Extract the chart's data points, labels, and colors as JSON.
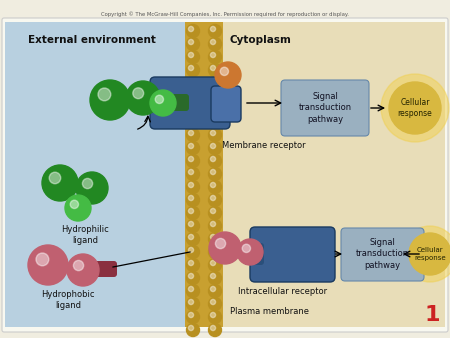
{
  "fig_width": 4.5,
  "fig_height": 3.38,
  "dpi": 100,
  "bg_outer": "#f0ede0",
  "bg_left": "#b8d0e0",
  "bg_right": "#e8ddb8",
  "membrane_color": "#c8a030",
  "copyright_text": "Copyright © The McGraw-Hill Companies, Inc. Permission required for reproduction or display.",
  "title_left": "External environment",
  "title_right": "Cytoplasm",
  "label_membrane_receptor": "Membrane receptor",
  "label_intracellular_receptor": "Intracellular receptor",
  "label_plasma_membrane": "Plasma membrane",
  "label_hydrophilic": "Hydrophilic\nligand",
  "label_hydrophobic": "Hydrophobic\nligand",
  "label_signal1": "Signal\ntransduction\npathway",
  "label_signal2": "Signal\ntransduction\npathway",
  "label_cellular1": "Cellular\nresponse",
  "label_cellular2": "Cellular\nresponse",
  "page_number": "1",
  "green_dark": "#228822",
  "green_light": "#44bb44",
  "red_ligand": "#c06070",
  "blue_receptor": "#3a5f90",
  "orange_ball": "#cc7730",
  "signal_box_color": "#9ab0c0",
  "cellular_response_color": "#d8b840",
  "membrane_bead_outer": "#b89020",
  "membrane_bead_inner": "#d8b040"
}
